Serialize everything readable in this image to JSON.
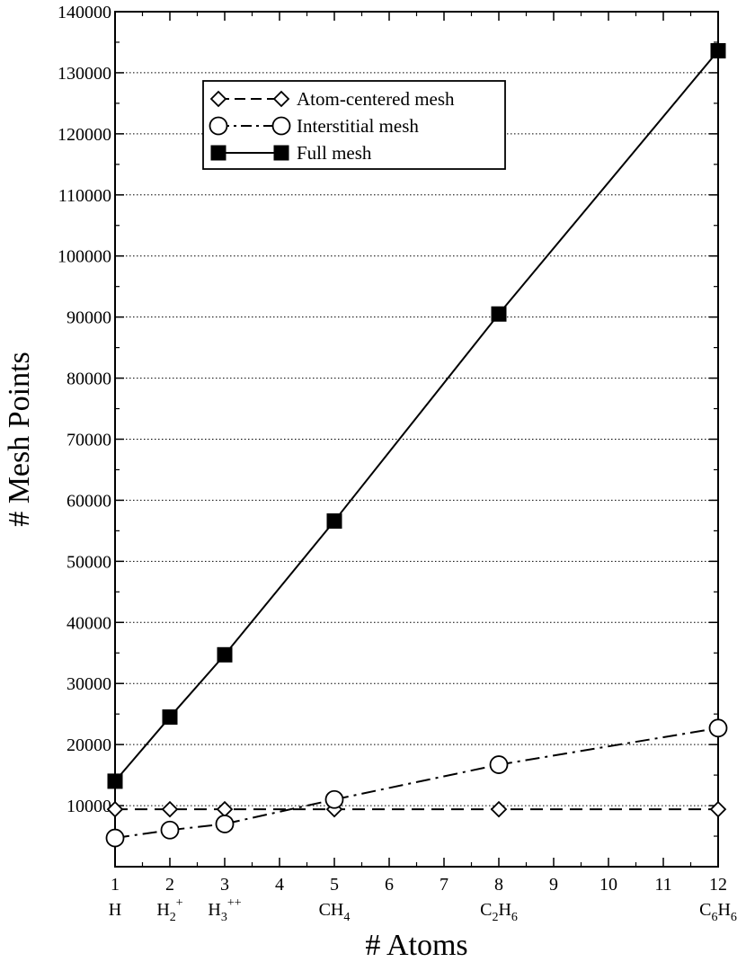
{
  "chart_data": {
    "type": "line",
    "xlabel": "# Atoms",
    "ylabel": "# Mesh Points",
    "xlim": [
      1,
      12
    ],
    "ylim": [
      0,
      140000
    ],
    "xticks": [
      1,
      2,
      3,
      4,
      5,
      6,
      7,
      8,
      9,
      10,
      11,
      12
    ],
    "yticks": [
      10000,
      20000,
      30000,
      40000,
      50000,
      60000,
      70000,
      80000,
      90000,
      100000,
      110000,
      120000,
      130000,
      140000
    ],
    "grid": "horizontal dotted",
    "legend_position": "top-left",
    "molecule_labels": [
      {
        "x": 1,
        "parts": [
          {
            "t": "H",
            "s": "n"
          }
        ]
      },
      {
        "x": 2,
        "parts": [
          {
            "t": "H",
            "s": "n"
          },
          {
            "t": "2",
            "s": "sub"
          },
          {
            "t": "+",
            "s": "sup"
          }
        ]
      },
      {
        "x": 3,
        "parts": [
          {
            "t": "H",
            "s": "n"
          },
          {
            "t": "3",
            "s": "sub"
          },
          {
            "t": "++",
            "s": "sup"
          }
        ]
      },
      {
        "x": 5,
        "parts": [
          {
            "t": "CH",
            "s": "n"
          },
          {
            "t": "4",
            "s": "sub"
          }
        ]
      },
      {
        "x": 8,
        "parts": [
          {
            "t": "C",
            "s": "n"
          },
          {
            "t": "2",
            "s": "sub"
          },
          {
            "t": "H",
            "s": "n"
          },
          {
            "t": "6",
            "s": "sub"
          }
        ]
      },
      {
        "x": 12,
        "parts": [
          {
            "t": "C",
            "s": "n"
          },
          {
            "t": "6",
            "s": "sub"
          },
          {
            "t": "H",
            "s": "n"
          },
          {
            "t": "6",
            "s": "sub"
          }
        ]
      }
    ],
    "series": [
      {
        "name": "Atom-centered mesh",
        "marker": "diamond-open",
        "line": "dashed",
        "x": [
          1,
          2,
          3,
          5,
          8,
          12
        ],
        "y": [
          9400,
          9400,
          9400,
          9400,
          9400,
          9400
        ]
      },
      {
        "name": "Interstitial mesh",
        "marker": "circle-open",
        "line": "dash-dot",
        "x": [
          1,
          2,
          3,
          5,
          8,
          12
        ],
        "y": [
          4700,
          6000,
          7000,
          11000,
          16700,
          22700
        ]
      },
      {
        "name": "Full mesh",
        "marker": "square-filled",
        "line": "solid",
        "x": [
          1,
          2,
          3,
          5,
          8,
          12
        ],
        "y": [
          14000,
          24500,
          34700,
          56600,
          90500,
          133600
        ]
      }
    ]
  }
}
